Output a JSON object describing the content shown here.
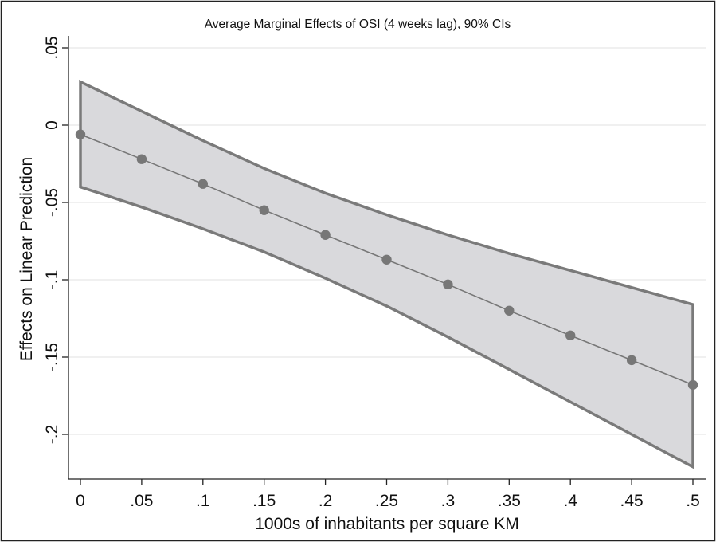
{
  "chart_data": {
    "type": "line",
    "title": "Average Marginal Effects of OSI (4 weeks lag),  90% CIs",
    "xlabel": "1000s of inhabitants per square KM",
    "ylabel": "Effects on Linear Prediction",
    "x": [
      0,
      0.05,
      0.1,
      0.15,
      0.2,
      0.25,
      0.3,
      0.35,
      0.4,
      0.45,
      0.5
    ],
    "series": [
      {
        "values": [
          -0.006,
          -0.022,
          -0.038,
          -0.055,
          -0.071,
          -0.087,
          -0.103,
          -0.12,
          -0.136,
          -0.152,
          -0.168
        ],
        "ci_upper": [
          0.028,
          0.009,
          -0.01,
          -0.028,
          -0.044,
          -0.058,
          -0.071,
          -0.083,
          -0.094,
          -0.105,
          -0.116
        ],
        "ci_lower": [
          -0.04,
          -0.053,
          -0.067,
          -0.082,
          -0.099,
          -0.117,
          -0.137,
          -0.158,
          -0.179,
          -0.2,
          -0.221
        ]
      }
    ],
    "xlim": [
      0,
      0.5
    ],
    "ylim": [
      -0.2,
      0.05
    ],
    "x_ticks": [
      0,
      0.05,
      0.1,
      0.15,
      0.2,
      0.25,
      0.3,
      0.35,
      0.4,
      0.45,
      0.5
    ],
    "x_tick_labels": [
      "0",
      ".05",
      ".1",
      ".15",
      ".2",
      ".25",
      ".3",
      ".35",
      ".4",
      ".45",
      ".5"
    ],
    "y_ticks": [
      0.05,
      0,
      -0.05,
      -0.1,
      -0.15,
      -0.2
    ],
    "y_tick_labels": [
      ".05",
      "0",
      "-.05",
      "-.1",
      "-.15",
      "-.2"
    ],
    "grid": true,
    "legend": "none",
    "colors": {
      "line": "#777777",
      "marker": "#777777",
      "band_fill": "#d9d9dc",
      "band_edge": "#7a7a7a",
      "grid": "#e6e6e6",
      "axis": "#222222"
    }
  }
}
